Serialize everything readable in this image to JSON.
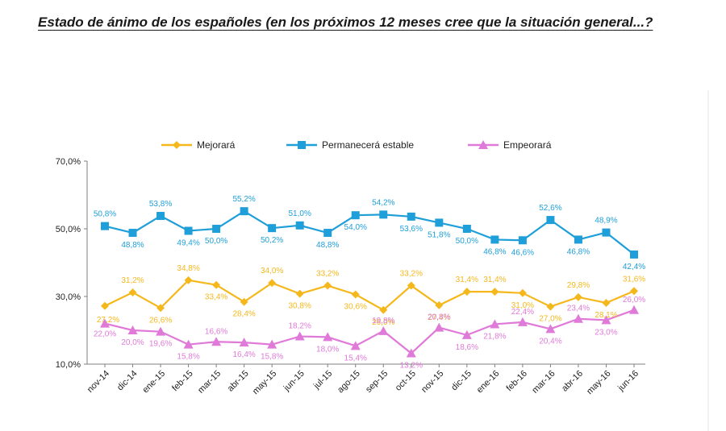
{
  "title": "Estado de ánimo de los españoles (en los próximos 12 meses cree que la situación general...?",
  "chart_data": {
    "type": "line",
    "title": "Estado de ánimo de los españoles (en los próximos 12 meses cree que la situación general...?",
    "xlabel": "",
    "ylabel": "",
    "ylim": [
      10,
      70
    ],
    "yticks": [
      10,
      30,
      50,
      70
    ],
    "ytick_labels": [
      "10,0%",
      "30,0%",
      "50,0%",
      "70,0%"
    ],
    "grid": false,
    "legend_position": "top",
    "categories": [
      "nov-14",
      "dic-14",
      "ene-15",
      "feb-15",
      "mar-15",
      "abr-15",
      "may-15",
      "jun-15",
      "jul-15",
      "ago-15",
      "sep-15",
      "oct-15",
      "nov-15",
      "dic-15",
      "ene-16",
      "feb-16",
      "mar-16",
      "abr-16",
      "may-16",
      "jun-16"
    ],
    "series": [
      {
        "name": "Mejorará",
        "color": "#f5b81c",
        "marker": "diamond",
        "values": [
          27.2,
          31.2,
          26.6,
          34.8,
          33.4,
          28.4,
          34.0,
          30.8,
          33.2,
          30.6,
          26.0,
          33.2,
          27.4,
          31.4,
          31.4,
          31.0,
          27.0,
          29.8,
          28.1,
          31.6
        ],
        "labels": [
          "",
          "31,2%",
          "26,6%",
          "34,8%",
          "33,4%",
          "28,4%",
          "34,0%",
          "30,8%",
          "33,2%",
          "30,6%",
          "26,0%",
          "33,2%",
          "27,4%",
          "31,4%",
          "31,4%",
          "31,0%",
          "27,0%",
          "29,8%",
          "28,1%",
          "31,6%"
        ]
      },
      {
        "name": "Permanecerá estable",
        "color": "#1f9fd9",
        "marker": "square",
        "values": [
          50.8,
          48.8,
          53.8,
          49.4,
          50.0,
          55.2,
          50.2,
          51.0,
          48.8,
          54.0,
          54.2,
          53.6,
          51.8,
          50.0,
          46.8,
          46.6,
          52.6,
          46.8,
          48.9,
          42.4
        ],
        "labels": [
          "50,8%",
          "48,8%",
          "53,8%",
          "49,4%",
          "50,0%",
          "55,2%",
          "50,2%",
          "51,0%",
          "48,8%",
          "54,0%",
          "54,2%",
          "53,6%",
          "51,8%",
          "50,0%",
          "46,8%",
          "46,6%",
          "52,6%",
          "46,8%",
          "48,9%",
          "42,4%"
        ]
      },
      {
        "name": "Empeorará",
        "color": "#e07ad9",
        "marker": "triangle",
        "values": [
          22.0,
          20.0,
          19.6,
          15.8,
          16.6,
          16.4,
          15.8,
          18.2,
          18.0,
          15.4,
          19.8,
          13.2,
          20.8,
          18.6,
          21.8,
          22.4,
          20.4,
          23.4,
          23.0,
          26.0
        ],
        "labels": [
          "22,0%",
          "20,0%",
          "19,6%",
          "15,8%",
          "16,6%",
          "16,4%",
          "15,8%",
          "18,2%",
          "18,0%",
          "15,4%",
          "19,8%",
          "13,2%",
          "20,8%",
          "18,6%",
          "21,8%",
          "22,4%",
          "20,4%",
          "23,4%",
          "23,0%",
          "26,0%"
        ]
      }
    ],
    "extra_labels": [
      "27,2%"
    ]
  }
}
